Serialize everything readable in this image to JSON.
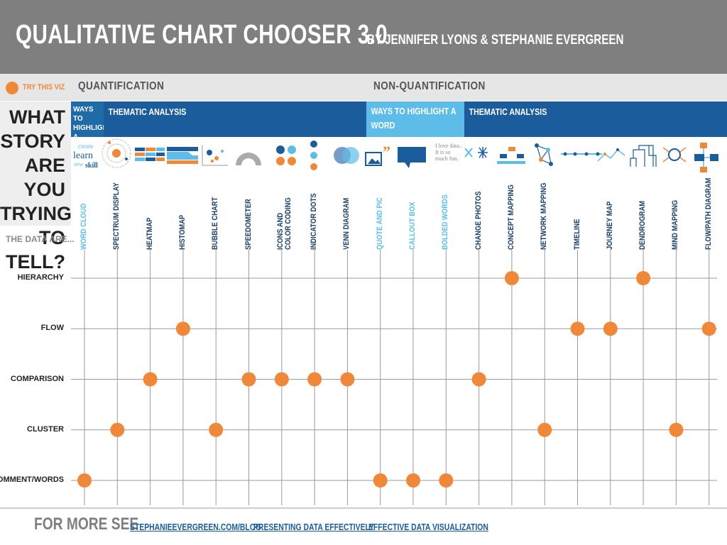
{
  "header": {
    "title": "QUALITATIVE CHART CHOOSER 3.0",
    "subtitle": "BY JENNIFER LYONS & STEPHANIE EVERGREEN"
  },
  "legend": {
    "label": "TRY THIS VIZ",
    "color": "#f0883a"
  },
  "categories": {
    "quantification": "QUANTIFICATION",
    "non_quantification": "NON-QUANTIFICATION"
  },
  "subcategories": {
    "q_ways": "WAYS TO HIGHLIGHT A WORD",
    "q_thematic": "THEMATIC ANALYSIS",
    "n_ways": "WAYS TO HIGHLIGHT A WORD",
    "n_thematic": "THEMATIC ANALYSIS"
  },
  "story_question": "WHAT\nSTORY\nARE YOU\nTRYING TO\nTELL?",
  "data_are": "THE DATA ARE...",
  "icon_text": {
    "word_cloud": [
      "create",
      "learn",
      "new",
      "skill"
    ],
    "quote": "I love data.. It is so much fun."
  },
  "colors": {
    "blue_dark": "#1b5d9c",
    "blue_light": "#5dbde8",
    "orange": "#f0883a",
    "grid": "#9a9a9a"
  },
  "chart_data": {
    "type": "matrix",
    "columns": [
      {
        "name": "WORD CLOUD",
        "highlight": true
      },
      {
        "name": "SPECTRUM DISPLAY",
        "highlight": false
      },
      {
        "name": "HEATMAP",
        "highlight": false
      },
      {
        "name": "HISTOMAP",
        "highlight": false
      },
      {
        "name": "BUBBLE CHART",
        "highlight": false
      },
      {
        "name": "SPEEDOMETER",
        "highlight": false
      },
      {
        "name": "ICONS AND COLOR CODING",
        "highlight": false
      },
      {
        "name": "INDICATOR DOTS",
        "highlight": false
      },
      {
        "name": "VENN DIAGRAM",
        "highlight": false
      },
      {
        "name": "QUOTE AND PIC",
        "highlight": true
      },
      {
        "name": "CALLOUT BOX",
        "highlight": true
      },
      {
        "name": "BOLDED WORDS",
        "highlight": true
      },
      {
        "name": "CHANGE PHOTOS",
        "highlight": false
      },
      {
        "name": "CONCEPT MAPPING",
        "highlight": false
      },
      {
        "name": "NETWORK MAPPING",
        "highlight": false
      },
      {
        "name": "TIMELINE",
        "highlight": false
      },
      {
        "name": "JOURNEY MAP",
        "highlight": false
      },
      {
        "name": "DENDROGRAM",
        "highlight": false
      },
      {
        "name": "MIND MAPPING",
        "highlight": false
      },
      {
        "name": "FLOW/PATH DIAGRAM",
        "highlight": false
      }
    ],
    "rows": [
      "HIERARCHY",
      "FLOW",
      "COMPARISON",
      "CLUSTER",
      "COMMENT/WORDS"
    ],
    "marks": [
      {
        "row": "HIERARCHY",
        "column": "CONCEPT MAPPING"
      },
      {
        "row": "HIERARCHY",
        "column": "DENDROGRAM"
      },
      {
        "row": "FLOW",
        "column": "HISTOMAP"
      },
      {
        "row": "FLOW",
        "column": "TIMELINE"
      },
      {
        "row": "FLOW",
        "column": "JOURNEY MAP"
      },
      {
        "row": "FLOW",
        "column": "FLOW/PATH DIAGRAM"
      },
      {
        "row": "COMPARISON",
        "column": "HEATMAP"
      },
      {
        "row": "COMPARISON",
        "column": "SPEEDOMETER"
      },
      {
        "row": "COMPARISON",
        "column": "ICONS AND COLOR CODING"
      },
      {
        "row": "COMPARISON",
        "column": "INDICATOR DOTS"
      },
      {
        "row": "COMPARISON",
        "column": "VENN DIAGRAM"
      },
      {
        "row": "COMPARISON",
        "column": "CHANGE PHOTOS"
      },
      {
        "row": "CLUSTER",
        "column": "SPECTRUM DISPLAY"
      },
      {
        "row": "CLUSTER",
        "column": "BUBBLE CHART"
      },
      {
        "row": "CLUSTER",
        "column": "NETWORK MAPPING"
      },
      {
        "row": "CLUSTER",
        "column": "MIND MAPPING"
      },
      {
        "row": "COMMENT/WORDS",
        "column": "WORD CLOUD"
      },
      {
        "row": "COMMENT/WORDS",
        "column": "QUOTE AND PIC"
      },
      {
        "row": "COMMENT/WORDS",
        "column": "CALLOUT BOX"
      },
      {
        "row": "COMMENT/WORDS",
        "column": "BOLDED WORDS"
      }
    ]
  },
  "footer": {
    "for_more": "FOR MORE SEE",
    "links": [
      "STEPHANIEEVERGREEN.COM/BLOG",
      "PRESENTING DATA EFFECTIVELY",
      "EFFECTIVE DATA VISUALIZATION"
    ]
  }
}
